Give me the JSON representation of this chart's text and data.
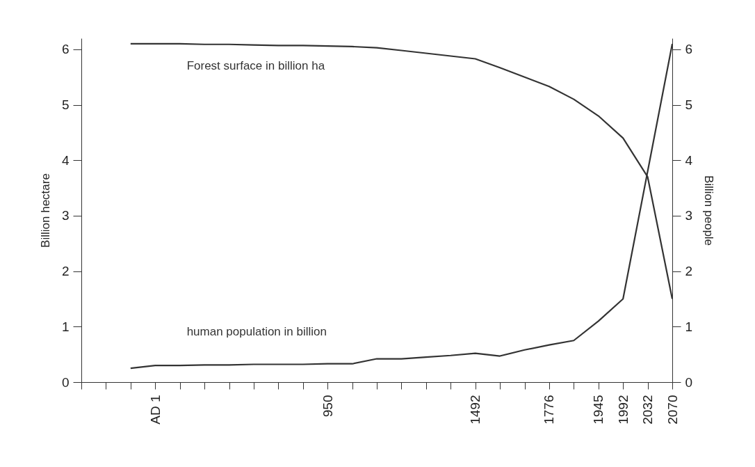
{
  "chart_data": {
    "type": "line",
    "ylabel": "Billion hectare",
    "y2label": "Billion people",
    "categories": [
      null,
      null,
      null,
      "AD 1",
      null,
      null,
      null,
      null,
      null,
      null,
      "950",
      null,
      null,
      null,
      null,
      null,
      "1492",
      null,
      null,
      "1776",
      null,
      "1945",
      "1992",
      "2032",
      "2070"
    ],
    "series": [
      {
        "name": "Forest surface in billion ha",
        "color": "#333333",
        "values": [
          null,
          null,
          6.1,
          6.1,
          6.1,
          6.09,
          6.09,
          6.08,
          6.07,
          6.07,
          6.06,
          6.05,
          6.03,
          5.98,
          5.93,
          5.88,
          5.83,
          5.67,
          5.5,
          5.33,
          5.1,
          4.8,
          4.4,
          3.7,
          1.5
        ]
      },
      {
        "name": "human population in billion",
        "color": "#333333",
        "axis": "y2",
        "values": [
          null,
          null,
          0.25,
          0.3,
          0.3,
          0.31,
          0.31,
          0.32,
          0.32,
          0.32,
          0.33,
          0.33,
          0.42,
          0.42,
          0.45,
          0.48,
          0.52,
          0.47,
          0.58,
          0.67,
          0.75,
          1.1,
          1.5,
          3.8,
          6.1
        ]
      }
    ],
    "ylim": [
      0,
      6.2
    ],
    "yticks": [
      0,
      1,
      2,
      3,
      4,
      5,
      6
    ],
    "y2lim": [
      0,
      6.2
    ],
    "y2ticks": [
      0,
      1,
      2,
      3,
      4,
      5,
      6
    ],
    "grid": false,
    "legend": false,
    "marker": "none",
    "line_style": "solid"
  }
}
